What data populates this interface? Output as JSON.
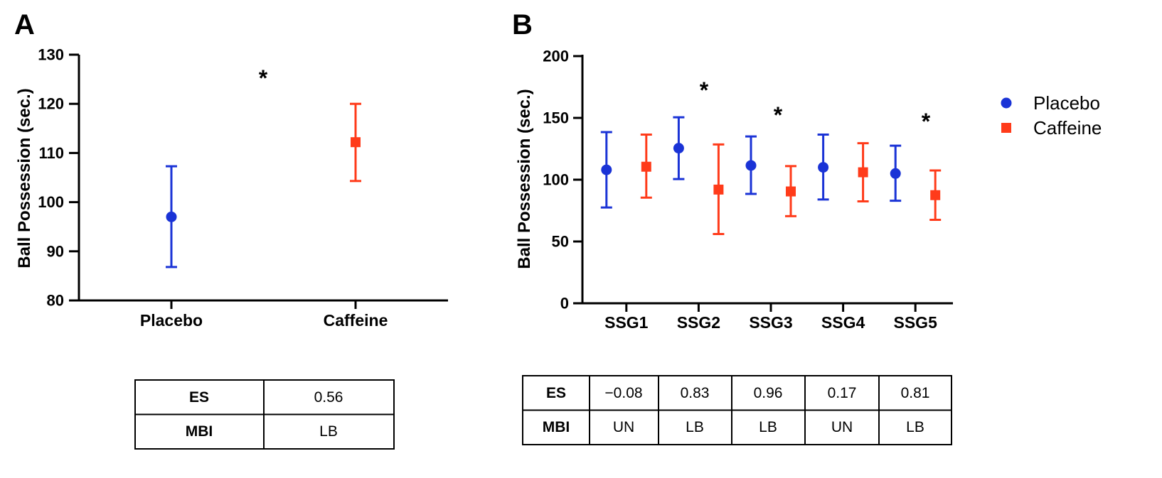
{
  "colors": {
    "placebo": "#1a33d6",
    "caffeine": "#ff3b1a",
    "axis": "#000000"
  },
  "chart_data": [
    {
      "panel": "A",
      "type": "scatter",
      "title": "",
      "xlabel": "",
      "ylabel": "Ball Possession (sec.)",
      "ylim": [
        80,
        130
      ],
      "yticks": [
        80,
        90,
        100,
        110,
        120,
        130
      ],
      "categories": [
        "Placebo",
        "Caffeine"
      ],
      "series": [
        {
          "name": "Placebo",
          "x": "Placebo",
          "mean": 97,
          "lower": 86.8,
          "upper": 107.3,
          "marker": "circle",
          "color": "#1a33d6"
        },
        {
          "name": "Caffeine",
          "x": "Caffeine",
          "mean": 112.2,
          "lower": 104.3,
          "upper": 120,
          "marker": "square",
          "color": "#ff3b1a"
        }
      ],
      "annotations": [
        {
          "text": "*",
          "position": "between"
        }
      ],
      "grid": false,
      "legend": "none",
      "table": {
        "row_labels": [
          "ES",
          "MBI"
        ],
        "rows": [
          [
            "0.56"
          ],
          [
            "LB"
          ]
        ]
      }
    },
    {
      "panel": "B",
      "type": "scatter",
      "title": "",
      "xlabel": "",
      "ylabel": "Ball Possession (sec.)",
      "ylim": [
        0,
        200
      ],
      "yticks": [
        0,
        50,
        100,
        150,
        200
      ],
      "categories": [
        "SSG1",
        "SSG2",
        "SSG3",
        "SSG4",
        "SSG5"
      ],
      "series": [
        {
          "name": "Placebo",
          "marker": "circle",
          "color": "#1a33d6",
          "values": [
            108,
            125.5,
            111.5,
            110,
            105
          ],
          "lower": [
            77.5,
            100.5,
            88.5,
            84,
            83
          ],
          "upper": [
            138.5,
            150.5,
            135,
            136.5,
            127.5
          ]
        },
        {
          "name": "Caffeine",
          "marker": "square",
          "color": "#ff3b1a",
          "values": [
            110.5,
            92,
            90.5,
            106,
            87.5
          ],
          "lower": [
            85.5,
            56,
            70.5,
            82.5,
            67.5
          ],
          "upper": [
            136.5,
            128.5,
            111,
            129.5,
            107.5
          ]
        }
      ],
      "annotations": [
        {
          "text": "*",
          "category": "SSG2"
        },
        {
          "text": "*",
          "category": "SSG3"
        },
        {
          "text": "*",
          "category": "SSG5"
        }
      ],
      "grid": false,
      "legend": "top-right",
      "table": {
        "row_labels": [
          "ES",
          "MBI"
        ],
        "rows": [
          [
            "−0.08",
            "0.83",
            "0.96",
            "0.17",
            "0.81"
          ],
          [
            "UN",
            "LB",
            "LB",
            "UN",
            "LB"
          ]
        ]
      }
    }
  ]
}
